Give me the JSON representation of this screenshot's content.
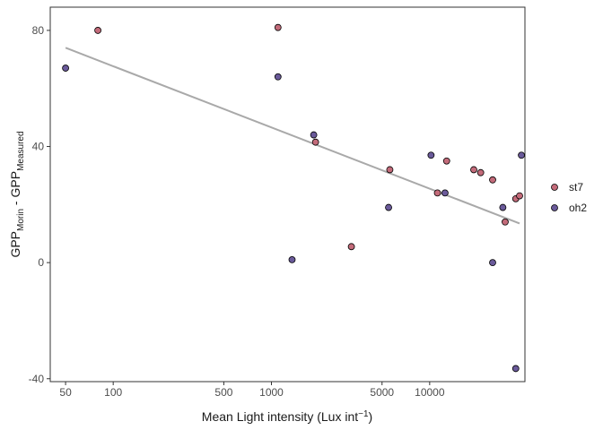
{
  "chart_data": {
    "type": "scatter",
    "x_scale": "log10",
    "xlabel": {
      "main": "Mean Light intensity (Lux int",
      "sup": "−1",
      "close": ")"
    },
    "ylabel": {
      "base1": "GPP",
      "sub1": "Morin",
      "mid": " - ",
      "base2": "GPP",
      "sub2": "Measured"
    },
    "xlim": [
      40,
      40000
    ],
    "ylim": [
      -41,
      88
    ],
    "x_ticks": [
      50,
      100,
      500,
      1000,
      5000,
      10000
    ],
    "x_tick_labels": [
      "50",
      "100",
      "500",
      "1000",
      "5000",
      "10000"
    ],
    "y_ticks": [
      -40,
      0,
      40,
      80
    ],
    "y_tick_labels": [
      "-40",
      "0",
      "40",
      "80"
    ],
    "grid": false,
    "legend_position": "right",
    "series": [
      {
        "name": "st7",
        "color": "#c36b7a",
        "points": [
          [
            80,
            80
          ],
          [
            1100,
            81
          ],
          [
            1900,
            41.5
          ],
          [
            3200,
            5.5
          ],
          [
            5600,
            32
          ],
          [
            11200,
            24
          ],
          [
            12800,
            35
          ],
          [
            19000,
            32
          ],
          [
            21000,
            31
          ],
          [
            25000,
            28.5
          ],
          [
            30000,
            14
          ],
          [
            35000,
            22
          ],
          [
            37000,
            23
          ]
        ]
      },
      {
        "name": "oh2",
        "color": "#6a5a9a",
        "points": [
          [
            50,
            67
          ],
          [
            1100,
            64
          ],
          [
            1350,
            1
          ],
          [
            1850,
            44
          ],
          [
            5500,
            19
          ],
          [
            10200,
            37
          ],
          [
            12500,
            24
          ],
          [
            25000,
            0
          ],
          [
            29000,
            19
          ],
          [
            35000,
            -36.5
          ],
          [
            38000,
            37
          ]
        ]
      }
    ],
    "trend_line": {
      "color": "#a9a9a9",
      "points": [
        [
          50,
          74
        ],
        [
          37000,
          13.5
        ]
      ]
    }
  }
}
